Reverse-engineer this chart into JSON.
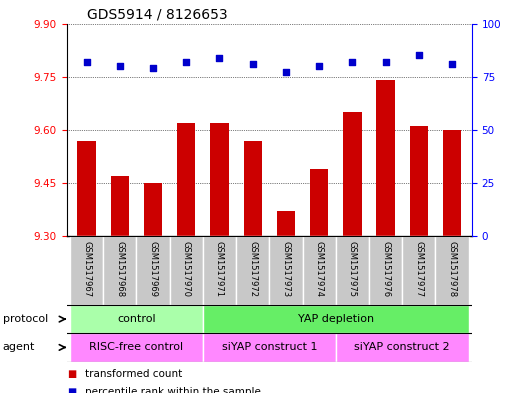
{
  "title": "GDS5914 / 8126653",
  "samples": [
    "GSM1517967",
    "GSM1517968",
    "GSM1517969",
    "GSM1517970",
    "GSM1517971",
    "GSM1517972",
    "GSM1517973",
    "GSM1517974",
    "GSM1517975",
    "GSM1517976",
    "GSM1517977",
    "GSM1517978"
  ],
  "transformed_counts": [
    9.57,
    9.47,
    9.45,
    9.62,
    9.62,
    9.57,
    9.37,
    9.49,
    9.65,
    9.74,
    9.61,
    9.6
  ],
  "percentile_ranks": [
    82,
    80,
    79,
    82,
    84,
    81,
    77,
    80,
    82,
    82,
    85,
    81
  ],
  "ylim_left": [
    9.3,
    9.9
  ],
  "ylim_right": [
    0,
    100
  ],
  "yticks_left": [
    9.3,
    9.45,
    9.6,
    9.75,
    9.9
  ],
  "yticks_right": [
    0,
    25,
    50,
    75,
    100
  ],
  "bar_color": "#cc0000",
  "dot_color": "#0000cc",
  "grid_color": "#000000",
  "protocol_groups": [
    {
      "label": "control",
      "start": 0,
      "end": 3,
      "color": "#aaffaa"
    },
    {
      "label": "YAP depletion",
      "start": 4,
      "end": 11,
      "color": "#66ee66"
    }
  ],
  "agent_groups": [
    {
      "label": "RISC-free control",
      "start": 0,
      "end": 3,
      "color": "#ff88ff"
    },
    {
      "label": "siYAP construct 1",
      "start": 4,
      "end": 7,
      "color": "#ff88ff"
    },
    {
      "label": "siYAP construct 2",
      "start": 8,
      "end": 11,
      "color": "#ff88ff"
    }
  ],
  "bg_color": "#ffffff",
  "sample_bg_color": "#c8c8c8",
  "title_fontsize": 10,
  "tick_fontsize": 7.5,
  "bar_fontsize": 6,
  "annot_fontsize": 8
}
